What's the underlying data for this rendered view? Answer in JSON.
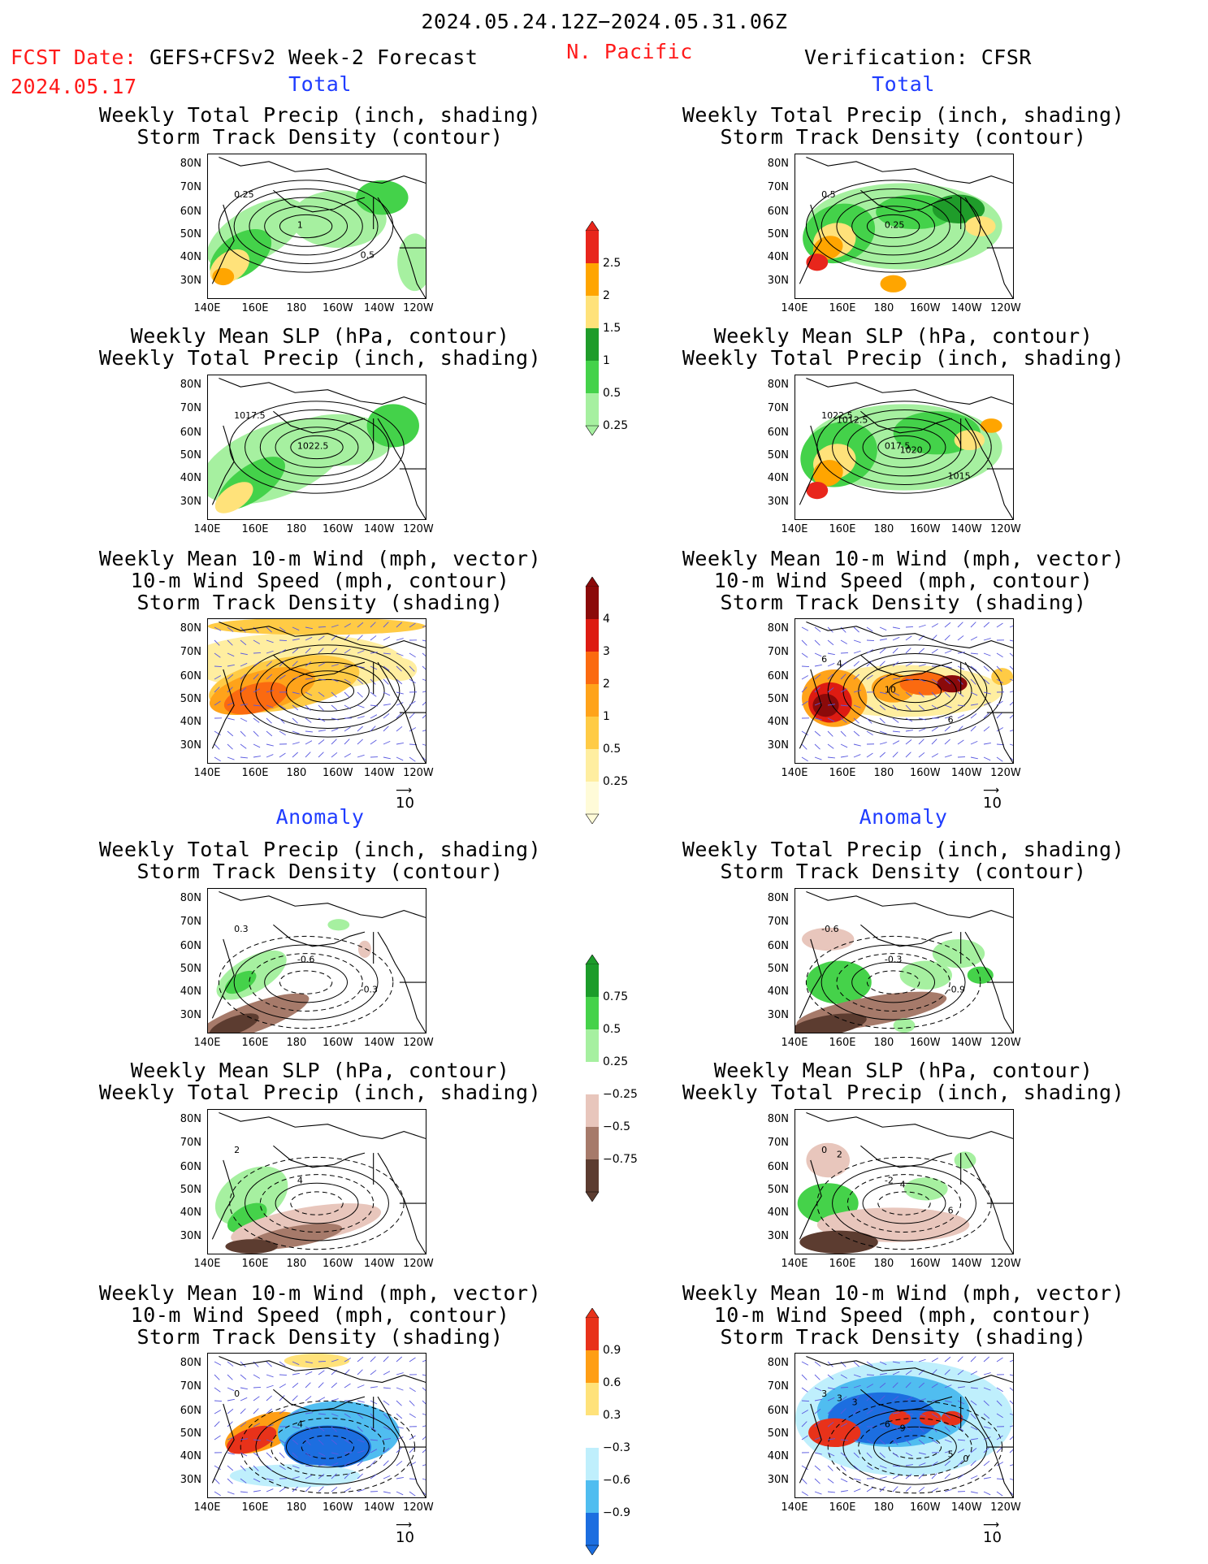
{
  "header": {
    "period": "2024.05.24.12Z−2024.05.31.06Z",
    "fcst_label": "FCST Date:",
    "model": "GEFS+CFSv2 Week-2 Forecast",
    "fcst_date": "2024.05.17",
    "region": "N. Pacific",
    "verification": "Verification: CFSR"
  },
  "sections": {
    "total": "Total",
    "anomaly": "Anomaly"
  },
  "panel_titles": {
    "precip_storm": [
      "Weekly Total Precip (inch, shading)",
      "Storm Track Density (contour)"
    ],
    "slp_precip": [
      "Weekly Mean SLP (hPa, contour)",
      "Weekly Total Precip (inch, shading)"
    ],
    "wind_storm": [
      "Weekly Mean 10-m Wind (mph, vector)",
      "10-m Wind Speed (mph, contour)",
      "Storm Track Density (shading)"
    ]
  },
  "axes": {
    "lat_labels": [
      "80N",
      "70N",
      "60N",
      "50N",
      "40N",
      "30N"
    ],
    "lon_labels": [
      "140E",
      "160E",
      "180",
      "160W",
      "140W",
      "120W"
    ]
  },
  "vector_ref": "10",
  "contour_labels": {
    "fc_total_precip": [
      "0.25",
      "1",
      "0.5"
    ],
    "ob_total_precip": [
      "0.5",
      "0.25"
    ],
    "fc_total_slp": [
      "1017.5",
      "1022.5"
    ],
    "ob_total_slp": [
      "1022.5",
      "017.5",
      "1015",
      "1012.5",
      "1020"
    ],
    "ob_total_wind": [
      "6",
      "10",
      "6",
      "4"
    ],
    "fc_anom_precip": [
      "0.3",
      "-0.6",
      "-0.3"
    ],
    "ob_anom_precip": [
      "-0.6",
      "-0.3",
      "-0.9"
    ],
    "fc_anom_slp": [
      "2",
      "4"
    ],
    "ob_anom_slp": [
      "0",
      "-2",
      "6",
      "2",
      "4"
    ],
    "fc_anom_wind": [
      "0",
      "4"
    ],
    "ob_anom_wind": [
      "3",
      "6",
      "5",
      "3",
      "9",
      "0",
      "3"
    ]
  },
  "colorbars": {
    "total_precip": {
      "labels": [
        "2.5",
        "2",
        "1.5",
        "1",
        "0.5",
        "0.25"
      ],
      "colors": [
        "#e8261c",
        "#ffa500",
        "#ffe27a",
        "#1f9c2a",
        "#44d24a",
        "#a6f0a0"
      ]
    },
    "total_storm": {
      "labels": [
        "4",
        "3",
        "2",
        "1",
        "0.5",
        "0.25"
      ],
      "colors": [
        "#8b0a0a",
        "#dd1b12",
        "#fb6a10",
        "#ffa31a",
        "#ffcb45",
        "#ffeea0",
        "#fffbd8"
      ]
    },
    "anom_precip": {
      "labels": [
        "0.75",
        "0.5",
        "0.25",
        "−0.25",
        "−0.5",
        "−0.75"
      ],
      "colors": [
        "#1c9c2a",
        "#45d24a",
        "#a6f0a0",
        "#ffffff",
        "#e8c6bc",
        "#a67a6a",
        "#5c3c30"
      ]
    },
    "anom_storm": {
      "labels": [
        "0.9",
        "0.6",
        "0.3",
        "−0.3",
        "−0.6",
        "−0.9"
      ],
      "colors": [
        "#e8321a",
        "#ff9e14",
        "#ffe27a",
        "#ffffff",
        "#bfeffc",
        "#50bdf0",
        "#1c6ee0"
      ]
    }
  }
}
